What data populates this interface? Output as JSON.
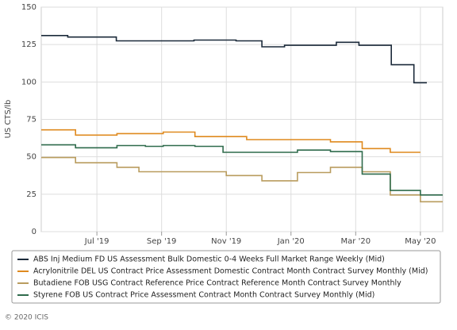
{
  "chart_data": {
    "type": "line",
    "step": true,
    "y_label": "US CTS/lb",
    "xlim": [
      5.28,
      17.69
    ],
    "xticks": [
      {
        "value": 7,
        "label": "Jul '19"
      },
      {
        "value": 9,
        "label": "Sep '19"
      },
      {
        "value": 11,
        "label": "Nov '19"
      },
      {
        "value": 13,
        "label": "Jan '20"
      },
      {
        "value": 15,
        "label": "Mar '20"
      },
      {
        "value": 17,
        "label": "May '20"
      }
    ],
    "ylim": [
      0,
      150
    ],
    "yticks": [
      0,
      25,
      50,
      75,
      100,
      125,
      150
    ],
    "grid": true,
    "series": [
      {
        "name": "ABS Inj Medium FD US Assessment Bulk Domestic 0-4 Weeks Full Market Range Weekly (Mid)",
        "color": "#1b2a3a",
        "x": [
          5.28,
          6.1,
          6.1,
          7.6,
          7.6,
          10.0,
          10.0,
          11.3,
          11.3,
          12.1,
          12.1,
          12.8,
          12.8,
          14.4,
          14.4,
          15.1,
          15.1,
          16.1,
          16.1,
          16.8,
          16.8,
          17.2
        ],
        "values": [
          131,
          131,
          130,
          130,
          127.5,
          127.5,
          128,
          128,
          127.5,
          127.5,
          123.5,
          123.5,
          124.5,
          124.5,
          126.5,
          126.5,
          124.5,
          124.5,
          111.5,
          111.5,
          99.5,
          99.5
        ]
      },
      {
        "name": "Acrylonitrile DEL US Contract Price Assessment Domestic Contract Month Contract Survey Monthly (Mid)",
        "color": "#df8a1f",
        "x": [
          5.28,
          6.34,
          6.34,
          7.62,
          7.62,
          9.05,
          9.05,
          10.03,
          10.03,
          11.63,
          11.63,
          14.22,
          14.22,
          15.2,
          15.2,
          16.07,
          16.07,
          17.0
        ],
        "values": [
          68,
          68,
          64.5,
          64.5,
          65.5,
          65.5,
          66.5,
          66.5,
          63.5,
          63.5,
          61.5,
          61.5,
          60,
          60,
          55.5,
          55.5,
          53,
          53
        ]
      },
      {
        "name": "Butadiene FOB USG Contract Reference Price Contract Reference Month Contract Survey Monthly",
        "color": "#b99c5e",
        "x": [
          5.28,
          6.34,
          6.34,
          7.62,
          7.62,
          8.3,
          8.3,
          11.0,
          11.0,
          12.1,
          12.1,
          13.2,
          13.2,
          14.22,
          14.22,
          15.2,
          15.2,
          16.07,
          16.07,
          17.0,
          17.0,
          17.69
        ],
        "values": [
          49.5,
          49.5,
          46,
          46,
          43,
          43,
          40,
          40,
          37.5,
          37.5,
          34,
          34,
          39.5,
          39.5,
          43,
          43,
          40,
          40,
          24.5,
          24.5,
          20,
          20
        ]
      },
      {
        "name": "Styrene FOB US Contract Price Assessment Contract Month Contract Survey Monthly (Mid)",
        "color": "#2f6b4c",
        "x": [
          5.28,
          6.34,
          6.34,
          7.62,
          7.62,
          8.5,
          8.5,
          9.05,
          9.05,
          10.03,
          10.03,
          10.9,
          10.9,
          13.2,
          13.2,
          14.22,
          14.22,
          15.2,
          15.2,
          16.07,
          16.07,
          17.0,
          17.0,
          17.69
        ],
        "values": [
          58,
          58,
          56,
          56,
          57.5,
          57.5,
          57,
          57,
          57.5,
          57.5,
          57,
          57,
          53,
          53,
          54.5,
          54.5,
          53.5,
          53.5,
          38.5,
          38.5,
          27.5,
          27.5,
          24.5,
          24.5
        ]
      }
    ],
    "footer": "© 2020 ICIS"
  }
}
